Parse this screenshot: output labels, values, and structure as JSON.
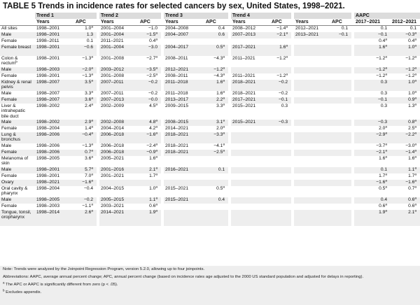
{
  "title": "TABLE 5 Trends in incidence rates for selected cancers by sex, United States, 1998–2021.",
  "headers": {
    "trend1": "Trend 1",
    "trend2": "Trend 2",
    "trend3": "Trend 3",
    "trend4": "Trend 4",
    "trend5": "",
    "aapc": "AAPC",
    "years": "Years",
    "apc": "APC",
    "aapc1": "2017–2021",
    "aapc2": "2012–2021"
  },
  "rows": [
    {
      "label": "All sites",
      "t1y": "1998–2001",
      "t1a": "1.0",
      "t1s": "a",
      "t2y": "2001–2004",
      "t2a": "−1.0",
      "t2s": "",
      "t3y": "2004–2008",
      "t3a": "0.4",
      "t3s": "",
      "t4y": "2008–2012",
      "t4a": "−1.4",
      "t4s": "a",
      "t5y": "2012–2021",
      "t5a": "0.1",
      "t5s": "",
      "a1": "0.1",
      "a1s": "",
      "a2": "0.1",
      "a2s": ""
    },
    {
      "label": "Male",
      "t1y": "1998–2001",
      "t1a": "1.3",
      "t1s": "",
      "t2y": "2001–2004",
      "t2a": "−1.5",
      "t2s": "a",
      "t3y": "2004–2007",
      "t3a": "0.6",
      "t3s": "",
      "t4y": "2007–2013",
      "t4a": "−2.1",
      "t4s": "a",
      "t5y": "2013–2021",
      "t5a": "−0.1",
      "t5s": "",
      "a1": "−0.1",
      "a1s": "",
      "a2": "−0.3",
      "a2s": "a"
    },
    {
      "label": "Female",
      "t1y": "1998–2011",
      "t1a": "0.1",
      "t1s": "",
      "t2y": "2011–2021",
      "t2a": "0.4",
      "t2s": "a",
      "t3y": "",
      "t3a": "",
      "t3s": "",
      "t4y": "",
      "t4a": "",
      "t4s": "",
      "t5y": "",
      "t5a": "",
      "t5s": "",
      "a1": "0.4",
      "a1s": "a",
      "a2": "0.4",
      "a2s": "a"
    },
    {
      "label": "Female breast",
      "t1y": "1998–2001",
      "t1a": "−0.6",
      "t1s": "",
      "t2y": "2001–2004",
      "t2a": "−3.0",
      "t2s": "",
      "t3y": "2004–2017",
      "t3a": "0.5",
      "t3s": "a",
      "t4y": "2017–2021",
      "t4a": "1.6",
      "t4s": "a",
      "t5y": "",
      "t5a": "",
      "t5s": "",
      "a1": "1.6",
      "a1s": "a",
      "a2": "1.0",
      "a2s": "a"
    },
    {
      "label": "Colon & rectum",
      "labelSup": "b",
      "t1y": "1998–2001",
      "t1a": "−1.3",
      "t1s": "a",
      "t2y": "2001–2008",
      "t2a": "−2.7",
      "t2s": "a",
      "t3y": "2008–2011",
      "t3a": "−4.3",
      "t3s": "a",
      "t4y": "2011–2021",
      "t4a": "−1.2",
      "t4s": "a",
      "t5y": "",
      "t5a": "",
      "t5s": "",
      "a1": "−1.2",
      "a1s": "a",
      "a2": "−1.2",
      "a2s": "a"
    },
    {
      "label": "Male",
      "t1y": "1998–2003",
      "t1a": "−2.0",
      "t1s": "a",
      "t2y": "2003–2012",
      "t2a": "−3.5",
      "t2s": "a",
      "t3y": "2012–2021",
      "t3a": "−1.2",
      "t3s": "a",
      "t4y": "",
      "t4a": "",
      "t4s": "",
      "t5y": "",
      "t5a": "",
      "t5s": "",
      "a1": "−1.2",
      "a1s": "a",
      "a2": "−1.2",
      "a2s": "a"
    },
    {
      "label": "Female",
      "t1y": "1998–2001",
      "t1a": "−1.3",
      "t1s": "a",
      "t2y": "2001–2008",
      "t2a": "−2.5",
      "t2s": "a",
      "t3y": "2008–2011",
      "t3a": "−4.3",
      "t3s": "a",
      "t4y": "2011–2021",
      "t4a": "−1.2",
      "t4s": "a",
      "t5y": "",
      "t5a": "",
      "t5s": "",
      "a1": "−1.2",
      "a1s": "a",
      "a2": "−1.2",
      "a2s": "a"
    },
    {
      "label": "Kidney & renal pelvis",
      "t1y": "1998–2007",
      "t1a": "3.5",
      "t1s": "a",
      "t2y": "2007–2011",
      "t2a": "−0.2",
      "t2s": "",
      "t3y": "2011–2018",
      "t3a": "1.6",
      "t3s": "a",
      "t4y": "2018–2021",
      "t4a": "−0.2",
      "t4s": "",
      "t5y": "",
      "t5a": "",
      "t5s": "",
      "a1": "0.3",
      "a1s": "",
      "a2": "1.0",
      "a2s": "a"
    },
    {
      "label": "Male",
      "t1y": "1998–2007",
      "t1a": "3.3",
      "t1s": "a",
      "t2y": "2007–2011",
      "t2a": "−0.2",
      "t2s": "",
      "t3y": "2011–2018",
      "t3a": "1.6",
      "t3s": "a",
      "t4y": "2018–2021",
      "t4a": "−0.2",
      "t4s": "",
      "t5y": "",
      "t5a": "",
      "t5s": "",
      "a1": "0.3",
      "a1s": "",
      "a2": "1.0",
      "a2s": "a"
    },
    {
      "label": "Female",
      "t1y": "1998–2007",
      "t1a": "3.6",
      "t1s": "a",
      "t2y": "2007–2013",
      "t2a": "−0.0",
      "t2s": "",
      "t3y": "2013–2017",
      "t3a": "2.2",
      "t3s": "a",
      "t4y": "2017–2021",
      "t4a": "−0.1",
      "t4s": "",
      "t5y": "",
      "t5a": "",
      "t5s": "",
      "a1": "−0.1",
      "a1s": "",
      "a2": "0.9",
      "a2s": "a"
    },
    {
      "label": "Liver & intrahepatic bile duct",
      "t1y": "1998–2002",
      "t1a": "2.4",
      "t1s": "a",
      "t2y": "2002–2009",
      "t2a": "4.5",
      "t2s": "a",
      "t3y": "2009–2015",
      "t3a": "3.3",
      "t3s": "a",
      "t4y": "2015–2021",
      "t4a": "0.3",
      "t4s": "",
      "t5y": "",
      "t5a": "",
      "t5s": "",
      "a1": "0.3",
      "a1s": "",
      "a2": "1.3",
      "a2s": "a"
    },
    {
      "label": "Male",
      "t1y": "1998–2002",
      "t1a": "2.9",
      "t1s": "a",
      "t2y": "2002–2008",
      "t2a": "4.8",
      "t2s": "a",
      "t3y": "2008–2015",
      "t3a": "3.1",
      "t3s": "a",
      "t4y": "2015–2021",
      "t4a": "−0.3",
      "t4s": "",
      "t5y": "",
      "t5a": "",
      "t5s": "",
      "a1": "−0.3",
      "a1s": "",
      "a2": "0.8",
      "a2s": "a"
    },
    {
      "label": "Female",
      "t1y": "1998–2004",
      "t1a": "1.4",
      "t1s": "a",
      "t2y": "2004–2014",
      "t2a": "4.2",
      "t2s": "a",
      "t3y": "2014–2021",
      "t3a": "2.0",
      "t3s": "a",
      "t4y": "",
      "t4a": "",
      "t4s": "",
      "t5y": "",
      "t5a": "",
      "t5s": "",
      "a1": "2.0",
      "a1s": "a",
      "a2": "2.5",
      "a2s": "a"
    },
    {
      "label": "Lung & bronchus",
      "t1y": "1998–2006",
      "t1a": "−0.4",
      "t1s": "a",
      "t2y": "2006–2018",
      "t2a": "−1.6",
      "t2s": "a",
      "t3y": "2018–2021",
      "t3a": "−3.3",
      "t3s": "a",
      "t4y": "",
      "t4a": "",
      "t4s": "",
      "t5y": "",
      "t5a": "",
      "t5s": "",
      "a1": "−2.9",
      "a1s": "a",
      "a2": "−2.2",
      "a2s": "a"
    },
    {
      "label": "Male",
      "t1y": "1998–2006",
      "t1a": "−1.3",
      "t1s": "a",
      "t2y": "2006–2018",
      "t2a": "−2.4",
      "t2s": "a",
      "t3y": "2018–2021",
      "t3a": "−4.1",
      "t3s": "a",
      "t4y": "",
      "t4a": "",
      "t4s": "",
      "t5y": "",
      "t5a": "",
      "t5s": "",
      "a1": "−3.7",
      "a1s": "a",
      "a2": "−3.0",
      "a2s": "a"
    },
    {
      "label": "Female",
      "t1y": "1998–2006",
      "t1a": "0.7",
      "t1s": "a",
      "t2y": "2006–2018",
      "t2a": "−0.9",
      "t2s": "a",
      "t3y": "2018–2021",
      "t3a": "−2.5",
      "t3s": "a",
      "t4y": "",
      "t4a": "",
      "t4s": "",
      "t5y": "",
      "t5a": "",
      "t5s": "",
      "a1": "−2.1",
      "a1s": "a",
      "a2": "−1.4",
      "a2s": "a"
    },
    {
      "label": "Melanoma of skin",
      "t1y": "1998–2005",
      "t1a": "3.6",
      "t1s": "a",
      "t2y": "2005–2021",
      "t2a": "1.6",
      "t2s": "a",
      "t3y": "",
      "t3a": "",
      "t3s": "",
      "t4y": "",
      "t4a": "",
      "t4s": "",
      "t5y": "",
      "t5a": "",
      "t5s": "",
      "a1": "1.6",
      "a1s": "a",
      "a2": "1.6",
      "a2s": "a"
    },
    {
      "label": "Male",
      "t1y": "1998–2001",
      "t1a": "5.7",
      "t1s": "a",
      "t2y": "2001–2016",
      "t2a": "2.1",
      "t2s": "a",
      "t3y": "2016–2021",
      "t3a": "0.1",
      "t3s": "",
      "t4y": "",
      "t4a": "",
      "t4s": "",
      "t5y": "",
      "t5a": "",
      "t5s": "",
      "a1": "0.1",
      "a1s": "",
      "a2": "1.1",
      "a2s": "a"
    },
    {
      "label": "Female",
      "t1y": "1998–2001",
      "t1a": "7.0",
      "t1s": "a",
      "t2y": "2001–2021",
      "t2a": "1.7",
      "t2s": "a",
      "t3y": "",
      "t3a": "",
      "t3s": "",
      "t4y": "",
      "t4a": "",
      "t4s": "",
      "t5y": "",
      "t5a": "",
      "t5s": "",
      "a1": "1.7",
      "a1s": "a",
      "a2": "1.7",
      "a2s": "a"
    },
    {
      "label": "Ovary",
      "t1y": "1998–2021",
      "t1a": "−1.6",
      "t1s": "a",
      "t2y": "",
      "t2a": "",
      "t2s": "",
      "t3y": "",
      "t3a": "",
      "t3s": "",
      "t4y": "",
      "t4a": "",
      "t4s": "",
      "t5y": "",
      "t5a": "",
      "t5s": "",
      "a1": "−1.6",
      "a1s": "a",
      "a2": "−1.6",
      "a2s": "a"
    },
    {
      "label": "Oral cavity & pharynx",
      "t1y": "1998–2004",
      "t1a": "−0.4",
      "t1s": "",
      "t2y": "2004–2015",
      "t2a": "1.0",
      "t2s": "a",
      "t3y": "2015–2021",
      "t3a": "0.5",
      "t3s": "a",
      "t4y": "",
      "t4a": "",
      "t4s": "",
      "t5y": "",
      "t5a": "",
      "t5s": "",
      "a1": "0.5",
      "a1s": "a",
      "a2": "0.7",
      "a2s": "a"
    },
    {
      "label": "Male",
      "t1y": "1998–2005",
      "t1a": "−0.2",
      "t1s": "",
      "t2y": "2005–2015",
      "t2a": "1.1",
      "t2s": "a",
      "t3y": "2015–2021",
      "t3a": "0.4",
      "t3s": "",
      "t4y": "",
      "t4a": "",
      "t4s": "",
      "t5y": "",
      "t5a": "",
      "t5s": "",
      "a1": "0.4",
      "a1s": "",
      "a2": "0.6",
      "a2s": "a"
    },
    {
      "label": "Female",
      "t1y": "1998–2003",
      "t1a": "−1.1",
      "t1s": "a",
      "t2y": "2003–2021",
      "t2a": "0.6",
      "t2s": "a",
      "t3y": "",
      "t3a": "",
      "t3s": "",
      "t4y": "",
      "t4a": "",
      "t4s": "",
      "t5y": "",
      "t5a": "",
      "t5s": "",
      "a1": "0.6",
      "a1s": "a",
      "a2": "0.6",
      "a2s": "a"
    },
    {
      "label": "Tongue, tonsil, oropharynx",
      "t1y": "1998–2014",
      "t1a": "2.6",
      "t1s": "a",
      "t2y": "2014–2021",
      "t2a": "1.9",
      "t2s": "a",
      "t3y": "",
      "t3a": "",
      "t3s": "",
      "t4y": "",
      "t4a": "",
      "t4s": "",
      "t5y": "",
      "t5a": "",
      "t5s": "",
      "a1": "1.9",
      "a1s": "a",
      "a2": "2.1",
      "a2s": "a"
    }
  ],
  "notes": {
    "n1": "Note: Trends were analyzed by the Joinpoint Regression Program, version 5.2.0, allowing up to four joinpoints.",
    "n2": "Abbreviations: AAPC, average annual percent change; APC, annual percent change (based on incidence rates age adjusted to the 2000 US standard population and adjusted for delays in reporting).",
    "n3_sup": "a",
    "n3": "The APC or AAPC is significantly different from zero (p < .05).",
    "n4_sup": "b",
    "n4": "Excludes appendix."
  }
}
